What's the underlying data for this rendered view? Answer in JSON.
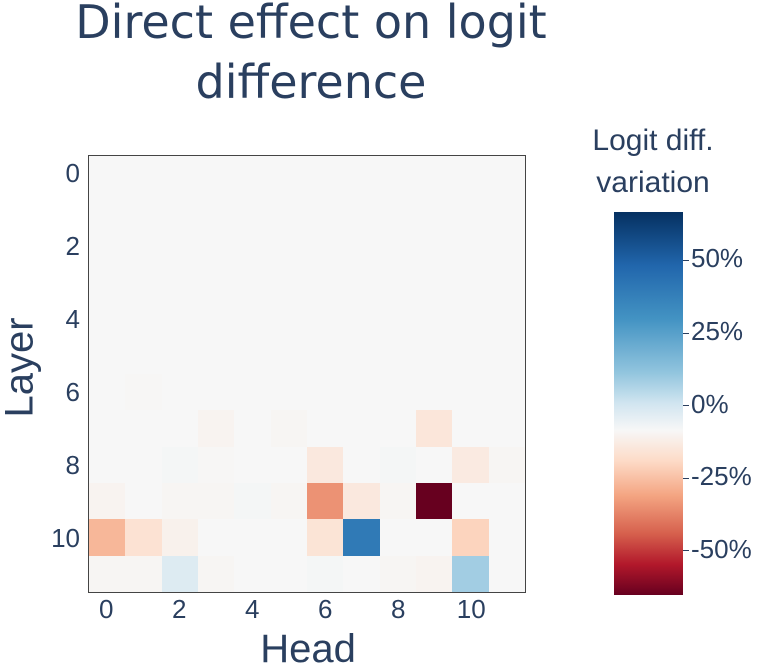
{
  "chart_data": {
    "type": "heatmap",
    "title": "Direct effect on logit difference",
    "xlabel": "Head",
    "ylabel": "Layer",
    "x": [
      0,
      1,
      2,
      3,
      4,
      5,
      6,
      7,
      8,
      9,
      10,
      11
    ],
    "y": [
      0,
      1,
      2,
      3,
      4,
      5,
      6,
      7,
      8,
      9,
      10,
      11
    ],
    "x_tick_labels": [
      "0",
      "2",
      "4",
      "6",
      "8",
      "10"
    ],
    "y_tick_labels": [
      "0",
      "2",
      "4",
      "6",
      "8",
      "10"
    ],
    "colorbar": {
      "title": "Logit diff. variation",
      "colorscale": "RdBu",
      "range": [
        -66,
        66
      ],
      "tick_labels": [
        "50%",
        "25%",
        "0%",
        "-25%",
        "-50%"
      ],
      "tick_values": [
        50,
        25,
        0,
        -25,
        -50
      ]
    },
    "units": "percent",
    "values": [
      [
        0,
        0,
        0,
        0,
        0,
        0,
        0,
        0,
        0,
        0,
        0,
        0
      ],
      [
        0,
        0,
        0,
        0,
        0,
        0,
        0,
        0,
        0,
        0,
        0,
        0
      ],
      [
        0,
        0,
        0,
        0,
        0,
        0,
        0,
        0,
        0,
        0,
        0,
        0
      ],
      [
        0,
        0,
        0,
        0,
        0,
        0,
        0,
        0,
        0,
        0,
        0,
        0
      ],
      [
        0,
        0,
        0,
        0,
        0,
        0,
        0,
        0,
        0,
        0,
        0,
        0
      ],
      [
        0,
        0,
        0,
        0,
        0,
        0,
        0,
        0,
        0,
        0,
        0,
        0
      ],
      [
        0,
        -0.5,
        0,
        0,
        0,
        0,
        0,
        0,
        0,
        0,
        0,
        0
      ],
      [
        0,
        0,
        0,
        -2,
        0,
        -1,
        0,
        0,
        0,
        -8,
        0,
        0
      ],
      [
        0,
        0,
        1,
        -0.5,
        0,
        0,
        -7,
        0,
        1,
        0,
        -6,
        -1
      ],
      [
        -2,
        0,
        -1,
        -1,
        1,
        -1,
        -30,
        -7,
        -1,
        -66,
        0,
        0
      ],
      [
        -22,
        -10,
        -3,
        0,
        0,
        0,
        -9,
        47,
        0,
        0,
        -15,
        0
      ],
      [
        -1,
        -1,
        9,
        -1,
        0,
        0,
        1,
        0,
        -1,
        -2,
        23,
        0
      ]
    ]
  },
  "labels": {
    "title": "Direct effect on logit difference",
    "xlabel": "Head",
    "ylabel": "Layer",
    "colorbar_title": "Logit diff. variation"
  }
}
